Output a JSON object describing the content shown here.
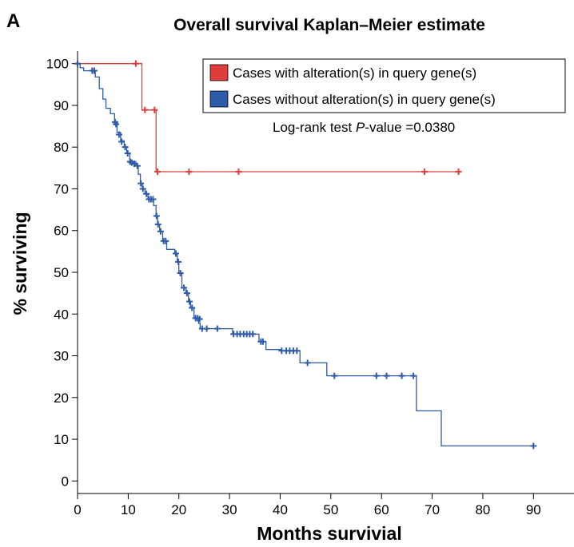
{
  "chart_data": {
    "type": "line",
    "panel_label": "A",
    "title": "Overall survival Kaplan–Meier estimate",
    "xlabel": "Months survivial",
    "ylabel": "% surviving",
    "xlim": [
      0,
      98
    ],
    "ylim": [
      -3,
      103
    ],
    "xticks": [
      0,
      10,
      20,
      30,
      40,
      50,
      60,
      70,
      80,
      90
    ],
    "yticks": [
      0,
      10,
      20,
      30,
      40,
      50,
      60,
      70,
      80,
      90,
      100
    ],
    "annotation": {
      "prefix": "Log-rank test ",
      "italic": "P",
      "suffix": "-value =0.0380"
    },
    "series": [
      {
        "name": "Cases with alteration(s) in query gene(s)",
        "color": "#e03c3c",
        "steps": [
          [
            0,
            100
          ],
          [
            12.7,
            100
          ],
          [
            12.7,
            88.9
          ],
          [
            15.5,
            88.9
          ],
          [
            15.5,
            74.1
          ],
          [
            75.2,
            74.1
          ]
        ],
        "censored": [
          [
            0,
            100
          ],
          [
            11.5,
            100
          ],
          [
            13.3,
            88.9
          ],
          [
            15.2,
            88.9
          ],
          [
            15.8,
            74.1
          ],
          [
            22,
            74.1
          ],
          [
            31.8,
            74.1
          ],
          [
            68.5,
            74.1
          ],
          [
            75.2,
            74.1
          ]
        ]
      },
      {
        "name": "Cases without alteration(s) in query gene(s)",
        "color": "#2e5aa8",
        "steps": [
          [
            0,
            100
          ],
          [
            0.5,
            100
          ],
          [
            0.5,
            99
          ],
          [
            1.2,
            99
          ],
          [
            1.2,
            98.3
          ],
          [
            3.5,
            98.3
          ],
          [
            3.5,
            96.8
          ],
          [
            4.3,
            96.8
          ],
          [
            4.3,
            94
          ],
          [
            5,
            94
          ],
          [
            5,
            91.5
          ],
          [
            5.6,
            91.5
          ],
          [
            5.6,
            89.3
          ],
          [
            6.5,
            89.3
          ],
          [
            6.5,
            88
          ],
          [
            7.3,
            88
          ],
          [
            7.3,
            86
          ],
          [
            7.8,
            86
          ],
          [
            7.8,
            83.5
          ],
          [
            8.5,
            83.5
          ],
          [
            8.5,
            81.5
          ],
          [
            9.2,
            81.5
          ],
          [
            9.2,
            80
          ],
          [
            9.7,
            80
          ],
          [
            9.7,
            78.5
          ],
          [
            10.3,
            78.5
          ],
          [
            10.3,
            76.5
          ],
          [
            11.5,
            76.5
          ],
          [
            11.5,
            75.5
          ],
          [
            12,
            75.5
          ],
          [
            12,
            73.5
          ],
          [
            12.4,
            73.5
          ],
          [
            12.4,
            71.3
          ],
          [
            12.8,
            71.3
          ],
          [
            12.8,
            70
          ],
          [
            13.3,
            70
          ],
          [
            13.3,
            68.8
          ],
          [
            13.9,
            68.8
          ],
          [
            13.9,
            67.5
          ],
          [
            15,
            67.5
          ],
          [
            15,
            66
          ],
          [
            15.5,
            66
          ],
          [
            15.5,
            63.5
          ],
          [
            15.8,
            63.5
          ],
          [
            15.8,
            61.5
          ],
          [
            16.2,
            61.5
          ],
          [
            16.2,
            59.8
          ],
          [
            16.8,
            59.8
          ],
          [
            16.8,
            57.5
          ],
          [
            17.6,
            57.5
          ],
          [
            17.6,
            55.5
          ],
          [
            19.2,
            55.5
          ],
          [
            19.2,
            54.5
          ],
          [
            19.7,
            54.5
          ],
          [
            19.7,
            52.5
          ],
          [
            20,
            52.5
          ],
          [
            20,
            49.8
          ],
          [
            20.6,
            49.8
          ],
          [
            20.6,
            46.3
          ],
          [
            21.4,
            46.3
          ],
          [
            21.4,
            45
          ],
          [
            21.9,
            45
          ],
          [
            21.9,
            43
          ],
          [
            22.3,
            43
          ],
          [
            22.3,
            41.5
          ],
          [
            23,
            41.5
          ],
          [
            23,
            39
          ],
          [
            23.9,
            39
          ],
          [
            23.9,
            37.8
          ],
          [
            24.2,
            37.8
          ],
          [
            24.2,
            36.5
          ],
          [
            30.6,
            36.5
          ],
          [
            30.6,
            35.2
          ],
          [
            35.8,
            35.2
          ],
          [
            35.8,
            33.4
          ],
          [
            37.2,
            33.4
          ],
          [
            37.2,
            31.5
          ],
          [
            40,
            31.5
          ],
          [
            40,
            31.2
          ],
          [
            43.9,
            31.2
          ],
          [
            43.9,
            28.3
          ],
          [
            49.2,
            28.3
          ],
          [
            49.2,
            25.2
          ],
          [
            66.9,
            25.2
          ],
          [
            66.9,
            16.8
          ],
          [
            71.8,
            16.8
          ],
          [
            71.8,
            8.4
          ],
          [
            90,
            8.4
          ]
        ],
        "censored": [
          [
            0,
            100
          ],
          [
            2.9,
            98.3
          ],
          [
            3.3,
            98.3
          ],
          [
            7.4,
            86
          ],
          [
            7.6,
            85.5
          ],
          [
            8.2,
            83
          ],
          [
            8.7,
            81.3
          ],
          [
            9.4,
            80
          ],
          [
            9.9,
            78.5
          ],
          [
            10.4,
            76.5
          ],
          [
            10.7,
            76.3
          ],
          [
            11.2,
            76
          ],
          [
            11.8,
            75.5
          ],
          [
            12.5,
            71.3
          ],
          [
            12.9,
            70
          ],
          [
            13.6,
            68.8
          ],
          [
            14.1,
            67.5
          ],
          [
            14.5,
            67.5
          ],
          [
            14.9,
            67.5
          ],
          [
            15.6,
            63.5
          ],
          [
            15.9,
            61.5
          ],
          [
            16.4,
            59.8
          ],
          [
            17,
            57.5
          ],
          [
            17.4,
            57.5
          ],
          [
            19.4,
            54.5
          ],
          [
            19.9,
            52.5
          ],
          [
            20.3,
            49.8
          ],
          [
            21,
            46.3
          ],
          [
            21.6,
            45
          ],
          [
            22.1,
            43
          ],
          [
            22.6,
            41.5
          ],
          [
            23.3,
            39
          ],
          [
            23.7,
            39
          ],
          [
            24.1,
            38.8
          ],
          [
            24.6,
            36.5
          ],
          [
            25.5,
            36.5
          ],
          [
            27.6,
            36.5
          ],
          [
            30.8,
            35.2
          ],
          [
            31.5,
            35.2
          ],
          [
            32.1,
            35.2
          ],
          [
            32.8,
            35.2
          ],
          [
            33.4,
            35.2
          ],
          [
            34,
            35.2
          ],
          [
            34.6,
            35.2
          ],
          [
            36.2,
            33.4
          ],
          [
            36.6,
            33.4
          ],
          [
            40.3,
            31.2
          ],
          [
            41.2,
            31.2
          ],
          [
            41.9,
            31.2
          ],
          [
            42.6,
            31.2
          ],
          [
            43.3,
            31.2
          ],
          [
            45.4,
            28.3
          ],
          [
            50.7,
            25.2
          ],
          [
            59,
            25.2
          ],
          [
            61,
            25.2
          ],
          [
            64,
            25.2
          ],
          [
            66.3,
            25.2
          ],
          [
            90,
            8.4
          ]
        ]
      }
    ],
    "legend_position": "top-right",
    "grid": false
  }
}
